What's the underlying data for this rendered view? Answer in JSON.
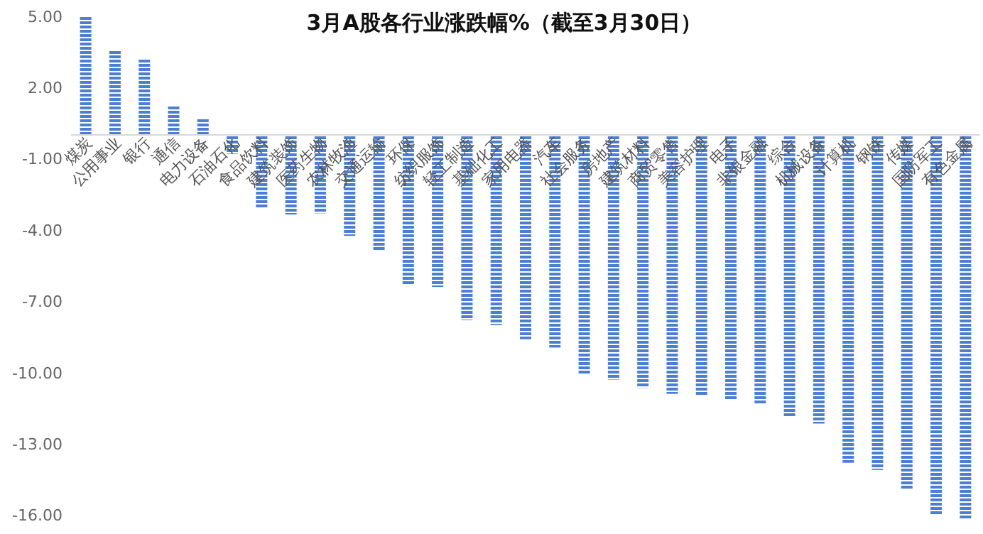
{
  "chart_data": {
    "type": "bar",
    "title": "3月A股各行业涨跌幅%（截至3月30日）",
    "categories": [
      "煤炭",
      "公用事业",
      "银行",
      "通信",
      "电力设备",
      "石油石化",
      "食品饮料",
      "建筑装饰",
      "医药生物",
      "农林牧渔",
      "交通运输",
      "环保",
      "纺织服饰",
      "轻工制造",
      "基础化工",
      "家用电器",
      "汽车",
      "社会服务",
      "房地产",
      "建筑材料",
      "商贸零售",
      "美容护理",
      "电子",
      "非银金融",
      "综合",
      "机械设备",
      "计算机",
      "钢铁",
      "传媒",
      "国防军工",
      "有色金属"
    ],
    "values": [
      5.0,
      3.55,
      3.2,
      1.2,
      0.7,
      -0.8,
      -3.1,
      -3.35,
      -3.3,
      -4.25,
      -4.9,
      -6.3,
      -6.4,
      -7.8,
      -8.0,
      -8.6,
      -8.95,
      -10.05,
      -10.3,
      -10.65,
      -10.9,
      -11.0,
      -11.15,
      -11.3,
      -11.85,
      -12.15,
      -13.8,
      -14.1,
      -14.9,
      -16.0,
      -16.2
    ],
    "color": "#4a7fd4",
    "ylim": [
      -16.2,
      5.2
    ],
    "yticks": [
      {
        "value": 5,
        "label": "5.00"
      },
      {
        "value": 2,
        "label": "2.00"
      },
      {
        "value": -1,
        "label": "-1.00"
      },
      {
        "value": -4,
        "label": "-4.00"
      },
      {
        "value": -7,
        "label": "-7.00"
      },
      {
        "value": -10,
        "label": "-10.00"
      },
      {
        "value": -13,
        "label": "-13.00"
      },
      {
        "value": -16,
        "label": "-16.00"
      }
    ],
    "grid": false
  }
}
